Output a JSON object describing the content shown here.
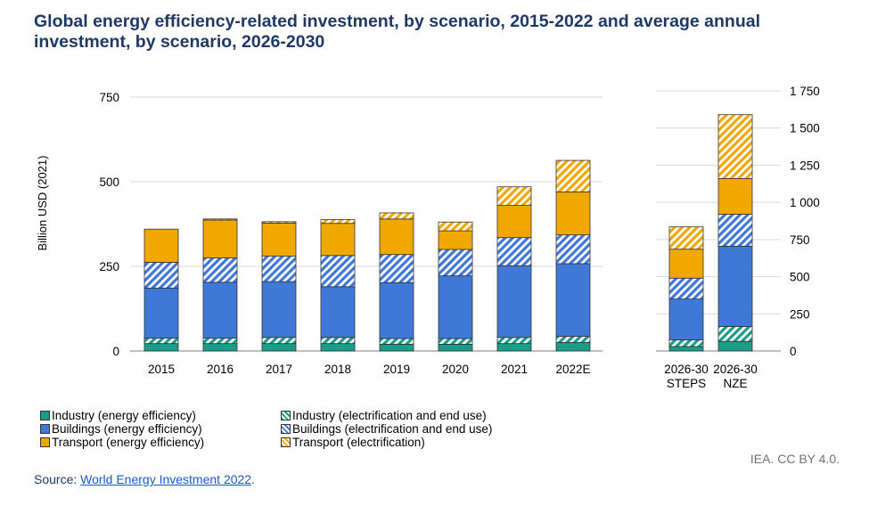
{
  "title": "Global energy efficiency-related investment, by scenario, 2015-2022 and average annual investment, by scenario, 2026-2030",
  "source_label": "Source: ",
  "source_link": "World Energy Investment 2022",
  "source_suffix": ".",
  "credit": "IEA. CC BY 4.0.",
  "colors": {
    "industry_ee": "#1a9c88",
    "industry_el": "#1a9c88",
    "buildings_ee": "#3f78d6",
    "buildings_el": "#3f78d6",
    "transport_ee": "#f0a800",
    "transport_el": "#f0a800"
  },
  "chart_data": [
    {
      "type": "bar",
      "stacked": true,
      "ylabel": "Billion USD (2021)",
      "ylim": [
        0,
        750
      ],
      "yticks": [
        0,
        250,
        500,
        750
      ],
      "grid": true,
      "categories": [
        "2015",
        "2016",
        "2017",
        "2018",
        "2019",
        "2020",
        "2021",
        "2022E"
      ],
      "series": [
        {
          "name": "Industry (energy efficiency)",
          "key": "industry_ee",
          "pattern": "solid",
          "values": [
            22,
            22,
            22,
            22,
            20,
            20,
            22,
            25
          ]
        },
        {
          "name": "Industry (electrification and end use)",
          "key": "industry_el",
          "pattern": "hatch",
          "values": [
            16,
            16,
            18,
            18,
            17,
            17,
            18,
            18
          ]
        },
        {
          "name": "Buildings (energy efficiency)",
          "key": "buildings_ee",
          "pattern": "solid",
          "values": [
            148,
            165,
            165,
            150,
            165,
            185,
            212,
            215
          ]
        },
        {
          "name": "Buildings (electrification and end use)",
          "key": "buildings_el",
          "pattern": "hatch",
          "values": [
            76,
            72,
            75,
            92,
            83,
            78,
            83,
            85
          ]
        },
        {
          "name": "Transport (energy efficiency)",
          "key": "transport_ee",
          "pattern": "solid",
          "values": [
            98,
            112,
            98,
            95,
            105,
            55,
            95,
            127
          ]
        },
        {
          "name": "Transport (electrification)",
          "key": "transport_el",
          "pattern": "hatch",
          "values": [
            0,
            3,
            4,
            11,
            18,
            26,
            55,
            93
          ]
        }
      ]
    },
    {
      "type": "bar",
      "stacked": true,
      "ylim": [
        0,
        1750
      ],
      "yticks": [
        0,
        250,
        500,
        750,
        1000,
        1250,
        1500,
        1750
      ],
      "ytick_labels": [
        "0",
        "250",
        "500",
        "750",
        "1 000",
        "1 250",
        "1 500",
        "1 750"
      ],
      "grid": true,
      "categories": [
        [
          "2026-30",
          "STEPS"
        ],
        [
          "2026-30",
          "NZE"
        ]
      ],
      "series": [
        {
          "name": "Industry (energy efficiency)",
          "key": "industry_ee",
          "pattern": "solid",
          "values": [
            30,
            65
          ]
        },
        {
          "name": "Industry (electrification and end use)",
          "key": "industry_el",
          "pattern": "hatch",
          "values": [
            45,
            100
          ]
        },
        {
          "name": "Buildings (energy efficiency)",
          "key": "buildings_ee",
          "pattern": "solid",
          "values": [
            275,
            540
          ]
        },
        {
          "name": "Buildings (electrification and end use)",
          "key": "buildings_el",
          "pattern": "hatch",
          "values": [
            140,
            215
          ]
        },
        {
          "name": "Transport (energy efficiency)",
          "key": "transport_ee",
          "pattern": "solid",
          "values": [
            195,
            240
          ]
        },
        {
          "name": "Transport (electrification)",
          "key": "transport_el",
          "pattern": "hatch",
          "values": [
            150,
            430
          ]
        }
      ]
    }
  ],
  "legend": [
    {
      "label": "Industry (energy efficiency)",
      "key": "industry_ee",
      "pattern": "solid"
    },
    {
      "label": "Industry (electrification and end use)",
      "key": "industry_el",
      "pattern": "hatch"
    },
    {
      "label": "Buildings (energy efficiency)",
      "key": "buildings_ee",
      "pattern": "solid"
    },
    {
      "label": "Buildings (electrification and end use)",
      "key": "buildings_el",
      "pattern": "hatch"
    },
    {
      "label": "Transport (energy efficiency)",
      "key": "transport_ee",
      "pattern": "solid"
    },
    {
      "label": "Transport (electrification)",
      "key": "transport_el",
      "pattern": "hatch"
    }
  ]
}
